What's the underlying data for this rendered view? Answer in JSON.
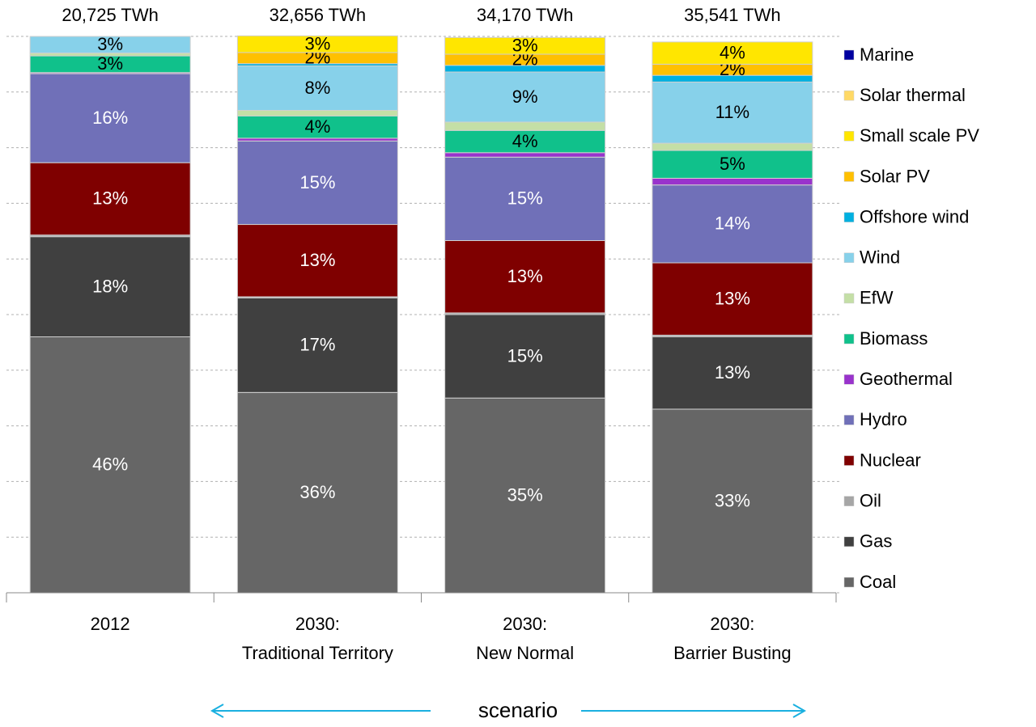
{
  "chart_data": {
    "type": "stacked_bar",
    "categories": [
      "2012",
      "2030:\nTraditional Territory",
      "2030:\nNew Normal",
      "2030:\nBarrier Busting"
    ],
    "totals": [
      "20,725 TWh",
      "32,656 TWh",
      "34,170 TWh",
      "35,541 TWh"
    ],
    "x_label": "scenario",
    "ylim": [
      0,
      100
    ],
    "yticks": [
      0,
      10,
      20,
      30,
      40,
      50,
      60,
      70,
      80,
      90,
      100
    ],
    "grid": true,
    "legend": "right",
    "series": [
      {
        "name": "Coal",
        "color": "#666666",
        "values": [
          46,
          36,
          35,
          33
        ],
        "value_labels": [
          "46%",
          "36%",
          "35%",
          "33%"
        ]
      },
      {
        "name": "Gas",
        "color": "#404040",
        "values": [
          18,
          17,
          15,
          13
        ],
        "value_labels": [
          "18%",
          "17%",
          "15%",
          "13%"
        ]
      },
      {
        "name": "Oil",
        "color": "#a6a6a6",
        "values": [
          0.3,
          0.2,
          0.3,
          0.3
        ],
        "value_labels": [
          null,
          null,
          null,
          null
        ]
      },
      {
        "name": "Nuclear",
        "color": "#7f0000",
        "values": [
          13,
          13,
          13,
          13
        ],
        "value_labels": [
          "13%",
          "13%",
          "13%",
          "13%"
        ]
      },
      {
        "name": "Hydro",
        "color": "#7070b8",
        "values": [
          16,
          15,
          15,
          14
        ],
        "value_labels": [
          "16%",
          "15%",
          "15%",
          "14%"
        ]
      },
      {
        "name": "Geothermal",
        "color": "#9933cc",
        "values": [
          0.2,
          0.5,
          0.8,
          1.2
        ],
        "value_labels": [
          null,
          null,
          null,
          null
        ]
      },
      {
        "name": "Biomass",
        "color": "#10c18b",
        "values": [
          3,
          4,
          4,
          5
        ],
        "value_labels": [
          "3%",
          "4%",
          "4%",
          "5%"
        ]
      },
      {
        "name": "EfW",
        "color": "#c4dfa6",
        "values": [
          0.5,
          1,
          1.5,
          1.3
        ],
        "value_labels": [
          null,
          null,
          null,
          null
        ]
      },
      {
        "name": "Wind",
        "color": "#87d1ea",
        "values": [
          3,
          8,
          9,
          11
        ],
        "value_labels": [
          "3%",
          "8%",
          "9%",
          "11%"
        ]
      },
      {
        "name": "Offshore wind",
        "color": "#00b0e0",
        "values": [
          0,
          0.4,
          1.2,
          1.2
        ],
        "value_labels": [
          null,
          null,
          null,
          null
        ]
      },
      {
        "name": "Solar PV",
        "color": "#ffc000",
        "values": [
          0,
          2,
          2,
          2
        ],
        "value_labels": [
          null,
          "2%",
          "2%",
          "2%"
        ]
      },
      {
        "name": "Small scale PV",
        "color": "#ffe600",
        "values": [
          0,
          3,
          3,
          4
        ],
        "value_labels": [
          null,
          "3%",
          "3%",
          "4%"
        ]
      },
      {
        "name": "Solar thermal",
        "color": "#ffd966",
        "values": [
          0,
          0,
          0,
          0
        ],
        "value_labels": [
          null,
          null,
          null,
          null
        ]
      },
      {
        "name": "Marine",
        "color": "#0000a0",
        "values": [
          0,
          0,
          0,
          0
        ],
        "value_labels": [
          null,
          null,
          null,
          null
        ]
      }
    ]
  }
}
